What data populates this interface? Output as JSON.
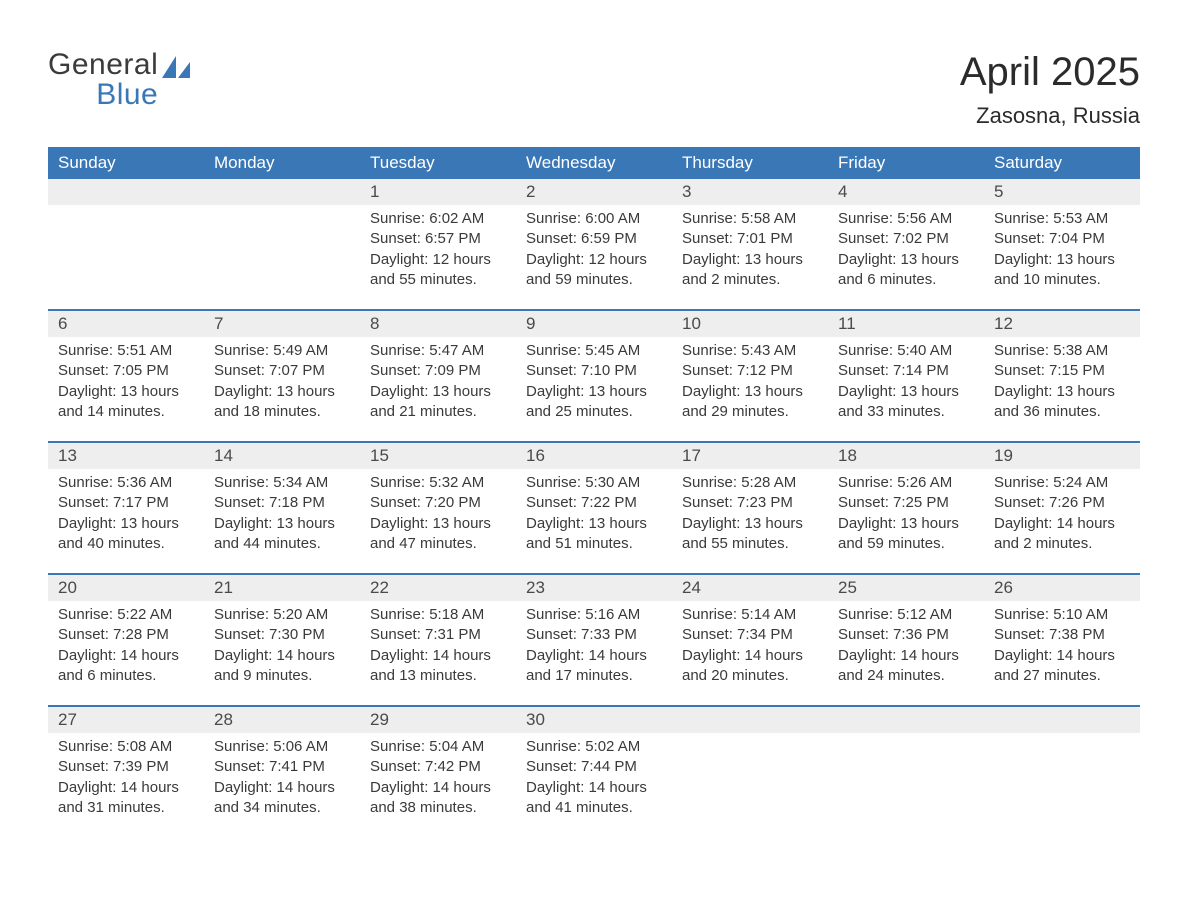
{
  "logo": {
    "word1": "General",
    "word2": "Blue"
  },
  "title": "April 2025",
  "subtitle": "Zasosna, Russia",
  "colors": {
    "header_bg": "#3a77b7",
    "header_text": "#ffffff",
    "daynum_bg": "#eeeeee",
    "body_text": "#3a3a3a",
    "week_border": "#3a77b7",
    "page_bg": "#ffffff"
  },
  "typography": {
    "title_fontsize": 40,
    "subtitle_fontsize": 22,
    "dow_fontsize": 17,
    "daynum_fontsize": 17,
    "body_fontsize": 15
  },
  "dow": [
    "Sunday",
    "Monday",
    "Tuesday",
    "Wednesday",
    "Thursday",
    "Friday",
    "Saturday"
  ],
  "weeks": [
    [
      null,
      null,
      {
        "n": "1",
        "sunrise": "Sunrise: 6:02 AM",
        "sunset": "Sunset: 6:57 PM",
        "daylight": "Daylight: 12 hours and 55 minutes."
      },
      {
        "n": "2",
        "sunrise": "Sunrise: 6:00 AM",
        "sunset": "Sunset: 6:59 PM",
        "daylight": "Daylight: 12 hours and 59 minutes."
      },
      {
        "n": "3",
        "sunrise": "Sunrise: 5:58 AM",
        "sunset": "Sunset: 7:01 PM",
        "daylight": "Daylight: 13 hours and 2 minutes."
      },
      {
        "n": "4",
        "sunrise": "Sunrise: 5:56 AM",
        "sunset": "Sunset: 7:02 PM",
        "daylight": "Daylight: 13 hours and 6 minutes."
      },
      {
        "n": "5",
        "sunrise": "Sunrise: 5:53 AM",
        "sunset": "Sunset: 7:04 PM",
        "daylight": "Daylight: 13 hours and 10 minutes."
      }
    ],
    [
      {
        "n": "6",
        "sunrise": "Sunrise: 5:51 AM",
        "sunset": "Sunset: 7:05 PM",
        "daylight": "Daylight: 13 hours and 14 minutes."
      },
      {
        "n": "7",
        "sunrise": "Sunrise: 5:49 AM",
        "sunset": "Sunset: 7:07 PM",
        "daylight": "Daylight: 13 hours and 18 minutes."
      },
      {
        "n": "8",
        "sunrise": "Sunrise: 5:47 AM",
        "sunset": "Sunset: 7:09 PM",
        "daylight": "Daylight: 13 hours and 21 minutes."
      },
      {
        "n": "9",
        "sunrise": "Sunrise: 5:45 AM",
        "sunset": "Sunset: 7:10 PM",
        "daylight": "Daylight: 13 hours and 25 minutes."
      },
      {
        "n": "10",
        "sunrise": "Sunrise: 5:43 AM",
        "sunset": "Sunset: 7:12 PM",
        "daylight": "Daylight: 13 hours and 29 minutes."
      },
      {
        "n": "11",
        "sunrise": "Sunrise: 5:40 AM",
        "sunset": "Sunset: 7:14 PM",
        "daylight": "Daylight: 13 hours and 33 minutes."
      },
      {
        "n": "12",
        "sunrise": "Sunrise: 5:38 AM",
        "sunset": "Sunset: 7:15 PM",
        "daylight": "Daylight: 13 hours and 36 minutes."
      }
    ],
    [
      {
        "n": "13",
        "sunrise": "Sunrise: 5:36 AM",
        "sunset": "Sunset: 7:17 PM",
        "daylight": "Daylight: 13 hours and 40 minutes."
      },
      {
        "n": "14",
        "sunrise": "Sunrise: 5:34 AM",
        "sunset": "Sunset: 7:18 PM",
        "daylight": "Daylight: 13 hours and 44 minutes."
      },
      {
        "n": "15",
        "sunrise": "Sunrise: 5:32 AM",
        "sunset": "Sunset: 7:20 PM",
        "daylight": "Daylight: 13 hours and 47 minutes."
      },
      {
        "n": "16",
        "sunrise": "Sunrise: 5:30 AM",
        "sunset": "Sunset: 7:22 PM",
        "daylight": "Daylight: 13 hours and 51 minutes."
      },
      {
        "n": "17",
        "sunrise": "Sunrise: 5:28 AM",
        "sunset": "Sunset: 7:23 PM",
        "daylight": "Daylight: 13 hours and 55 minutes."
      },
      {
        "n": "18",
        "sunrise": "Sunrise: 5:26 AM",
        "sunset": "Sunset: 7:25 PM",
        "daylight": "Daylight: 13 hours and 59 minutes."
      },
      {
        "n": "19",
        "sunrise": "Sunrise: 5:24 AM",
        "sunset": "Sunset: 7:26 PM",
        "daylight": "Daylight: 14 hours and 2 minutes."
      }
    ],
    [
      {
        "n": "20",
        "sunrise": "Sunrise: 5:22 AM",
        "sunset": "Sunset: 7:28 PM",
        "daylight": "Daylight: 14 hours and 6 minutes."
      },
      {
        "n": "21",
        "sunrise": "Sunrise: 5:20 AM",
        "sunset": "Sunset: 7:30 PM",
        "daylight": "Daylight: 14 hours and 9 minutes."
      },
      {
        "n": "22",
        "sunrise": "Sunrise: 5:18 AM",
        "sunset": "Sunset: 7:31 PM",
        "daylight": "Daylight: 14 hours and 13 minutes."
      },
      {
        "n": "23",
        "sunrise": "Sunrise: 5:16 AM",
        "sunset": "Sunset: 7:33 PM",
        "daylight": "Daylight: 14 hours and 17 minutes."
      },
      {
        "n": "24",
        "sunrise": "Sunrise: 5:14 AM",
        "sunset": "Sunset: 7:34 PM",
        "daylight": "Daylight: 14 hours and 20 minutes."
      },
      {
        "n": "25",
        "sunrise": "Sunrise: 5:12 AM",
        "sunset": "Sunset: 7:36 PM",
        "daylight": "Daylight: 14 hours and 24 minutes."
      },
      {
        "n": "26",
        "sunrise": "Sunrise: 5:10 AM",
        "sunset": "Sunset: 7:38 PM",
        "daylight": "Daylight: 14 hours and 27 minutes."
      }
    ],
    [
      {
        "n": "27",
        "sunrise": "Sunrise: 5:08 AM",
        "sunset": "Sunset: 7:39 PM",
        "daylight": "Daylight: 14 hours and 31 minutes."
      },
      {
        "n": "28",
        "sunrise": "Sunrise: 5:06 AM",
        "sunset": "Sunset: 7:41 PM",
        "daylight": "Daylight: 14 hours and 34 minutes."
      },
      {
        "n": "29",
        "sunrise": "Sunrise: 5:04 AM",
        "sunset": "Sunset: 7:42 PM",
        "daylight": "Daylight: 14 hours and 38 minutes."
      },
      {
        "n": "30",
        "sunrise": "Sunrise: 5:02 AM",
        "sunset": "Sunset: 7:44 PM",
        "daylight": "Daylight: 14 hours and 41 minutes."
      },
      null,
      null,
      null
    ]
  ]
}
